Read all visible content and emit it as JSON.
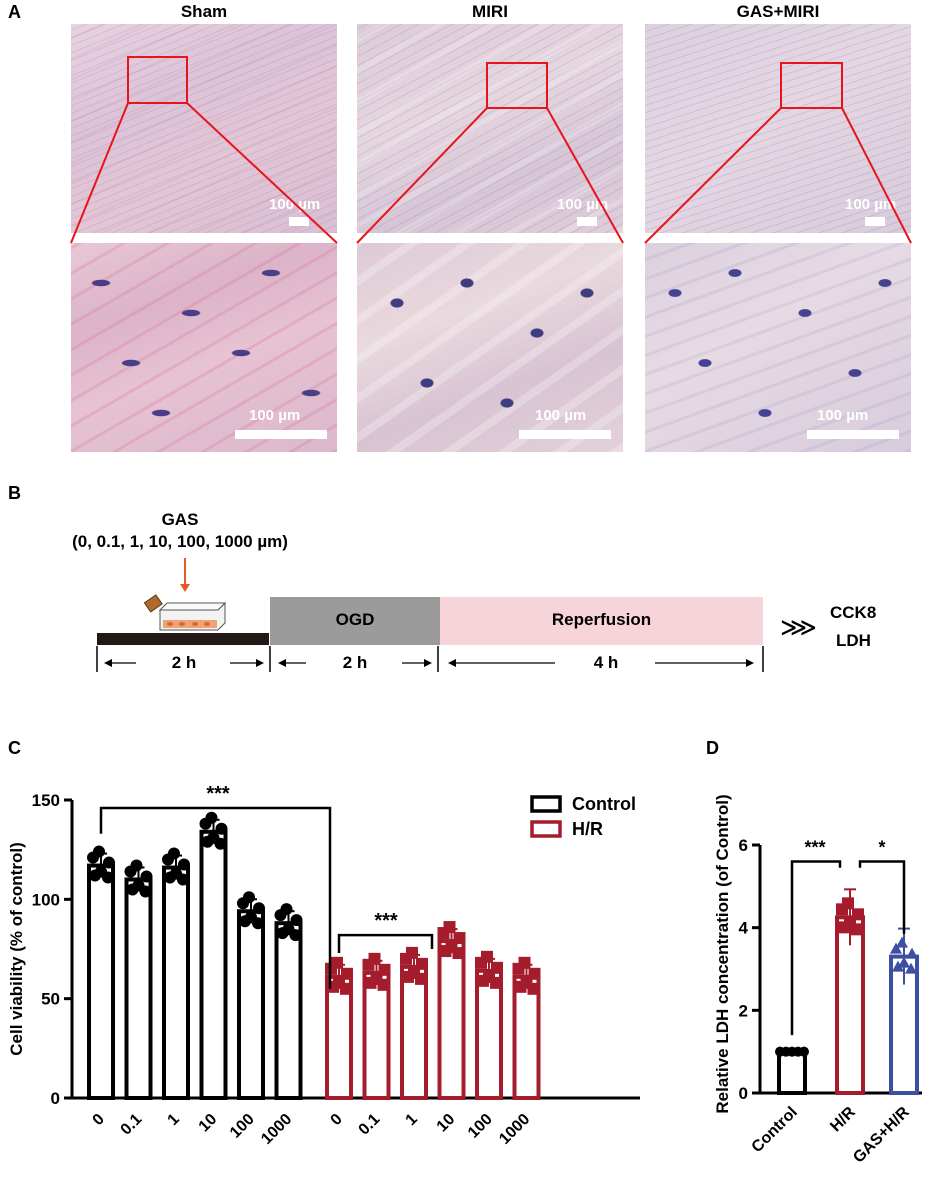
{
  "panel_letters": {
    "a": "A",
    "b": "B",
    "c": "C",
    "d": "D"
  },
  "histology": {
    "groups": [
      "Sham",
      "MIRI",
      "GAS+MIRI"
    ],
    "scale_label": "100 µm"
  },
  "protocol": {
    "drug": "GAS",
    "concentrations": "(0, 0.1, 1, 10, 100, 1000 µm)",
    "phases": [
      "OGD",
      "Reperfusion"
    ],
    "durations": [
      "2 h",
      "2 h",
      "4 h"
    ],
    "readouts": [
      "CCK8",
      "LDH"
    ],
    "arrow_symbol": "⋙"
  },
  "colors": {
    "control": "#000000",
    "hr": "#a51c2c",
    "gas_hr": "#3c4fa0",
    "ogd": "#9b9b9b",
    "reperfusion": "#f7d3da",
    "zoom_box": "#e8141b",
    "arrow": "#e8582a"
  },
  "chart_data": [
    {
      "type": "bar",
      "ylabel": "Cell viability (% of control)",
      "ylim": [
        0,
        150
      ],
      "yticks": [
        0,
        50,
        100,
        150
      ],
      "categories": [
        "0",
        "0.1",
        "1",
        "10",
        "100",
        "1000"
      ],
      "series": [
        {
          "name": "Control",
          "values": [
            117,
            110,
            116,
            134,
            94,
            88
          ]
        },
        {
          "name": "H/R",
          "values": [
            61,
            63,
            66,
            79,
            64,
            61
          ]
        }
      ],
      "annotations": [
        "***",
        "***"
      ],
      "legend": "top-right"
    },
    {
      "type": "bar",
      "ylabel": "Relative LDH concentration (of Control)",
      "ylim": [
        0,
        6
      ],
      "yticks": [
        0,
        2,
        4,
        6
      ],
      "categories": [
        "Control",
        "H/R",
        "GAS+H/R"
      ],
      "values": [
        1.0,
        4.25,
        3.3
      ],
      "annotations": [
        "***",
        "*"
      ]
    }
  ]
}
